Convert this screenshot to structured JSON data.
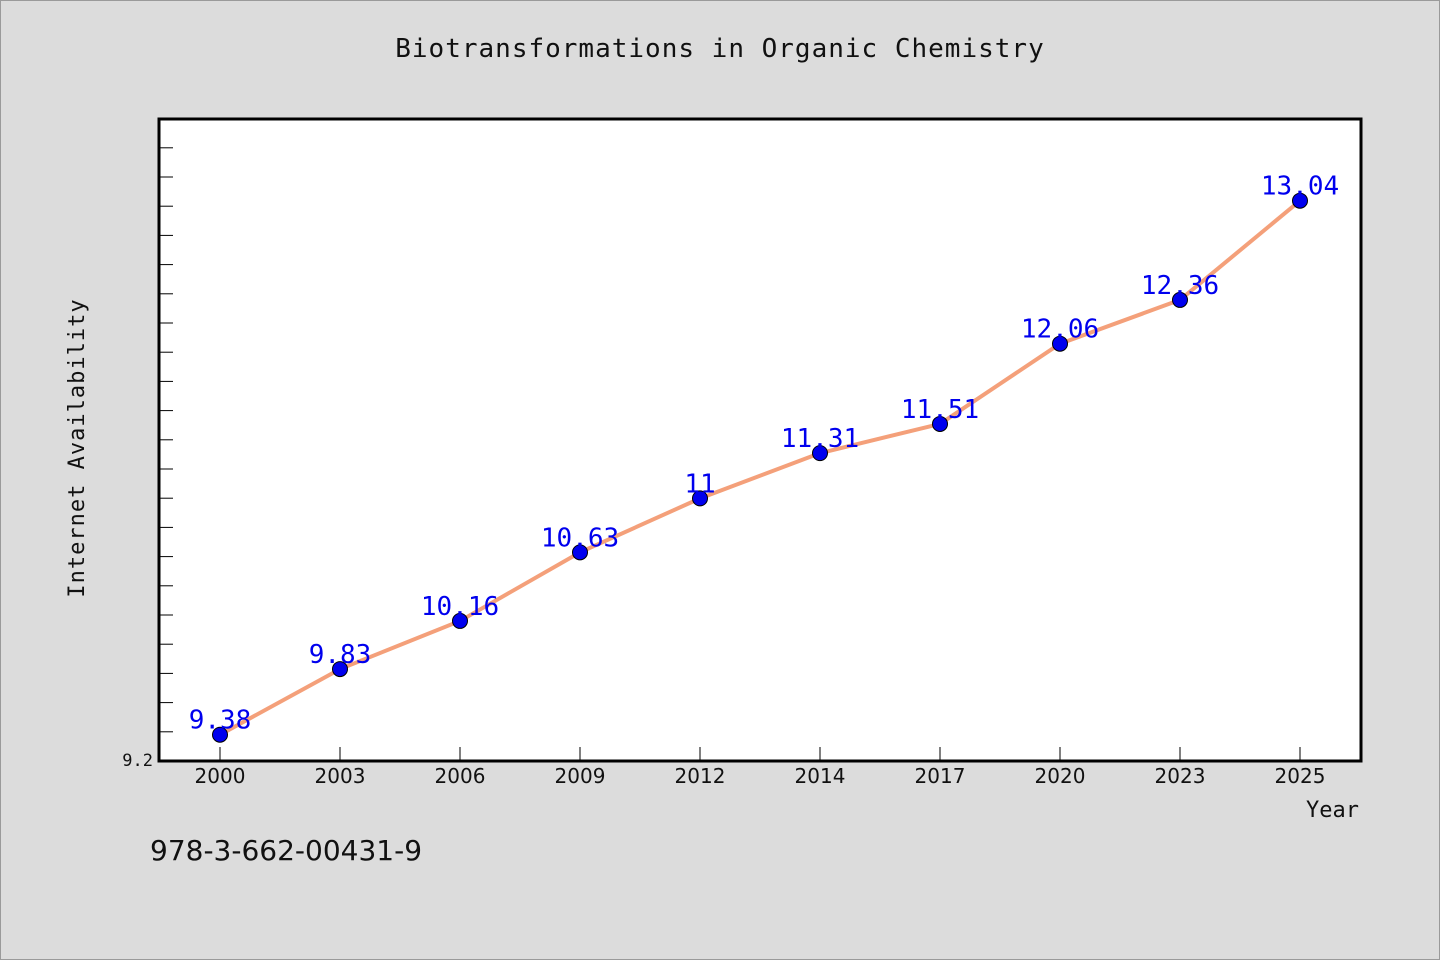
{
  "chart_data": {
    "type": "line",
    "title": "Biotransformations in Organic Chemistry",
    "xlabel": "Year",
    "ylabel": "Internet Availability",
    "categories": [
      "2000",
      "2003",
      "2006",
      "2009",
      "2012",
      "2014",
      "2017",
      "2020",
      "2023",
      "2025"
    ],
    "series": [
      {
        "values": [
          9.38,
          9.83,
          10.16,
          10.63,
          11,
          11.31,
          11.51,
          12.06,
          12.36,
          13.04
        ],
        "data_labels": [
          "9.38",
          "9.83",
          "10.16",
          "10.63",
          "11",
          "11.31",
          "11.51",
          "12.06",
          "12.36",
          "13.04"
        ],
        "line_color": "#f4a07a",
        "marker_color": "#0000ee"
      }
    ],
    "ylim": [
      9.2,
      13.6
    ],
    "y_tick_labels": [
      "9.2"
    ],
    "grid": false,
    "label_color": "#0000ee"
  },
  "footer": {
    "isbn": "978-3-662-00431-9"
  }
}
